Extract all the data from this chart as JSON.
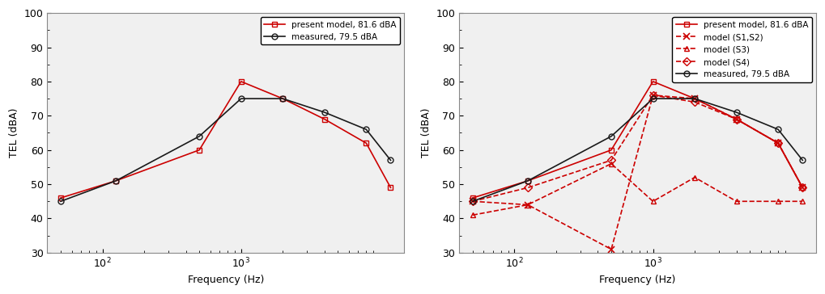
{
  "freqs8": [
    50,
    125,
    500,
    1000,
    2000,
    4000,
    8000,
    12000
  ],
  "left_present": [
    46,
    51,
    60,
    80,
    75,
    69,
    62,
    49
  ],
  "left_measured": [
    45,
    51,
    64,
    75,
    75,
    71,
    66,
    57
  ],
  "right_present": [
    46,
    51,
    60,
    80,
    75,
    69,
    62,
    49
  ],
  "right_S1S2": [
    45,
    44,
    31,
    76,
    75,
    69,
    62,
    49
  ],
  "right_S3": [
    41,
    44,
    56,
    45,
    52,
    45,
    45,
    45
  ],
  "right_S4": [
    45,
    49,
    57,
    76,
    74,
    69,
    62,
    49
  ],
  "right_measured": [
    45,
    51,
    64,
    75,
    75,
    71,
    66,
    57
  ],
  "xlim": [
    40,
    15000
  ],
  "ylim": [
    30,
    100
  ],
  "yticks": [
    30,
    40,
    50,
    60,
    70,
    80,
    90,
    100
  ],
  "xlabel": "Frequency (Hz)",
  "ylabel": "TEL (dBA)",
  "left_present_label": "present model, 81.6 dBA",
  "left_measured_label": "measured, 79.5 dBA",
  "right_present_label": "present model, 81.6 dBA",
  "right_S1S2_label": "model (S1,S2)",
  "right_S3_label": "model (S3)",
  "right_S4_label": "model (S4)",
  "right_measured_label": "measured, 79.5 dBA",
  "red_color": "#CC0000",
  "black_color": "#1a1a1a",
  "bg_color": "#f0f0f0"
}
